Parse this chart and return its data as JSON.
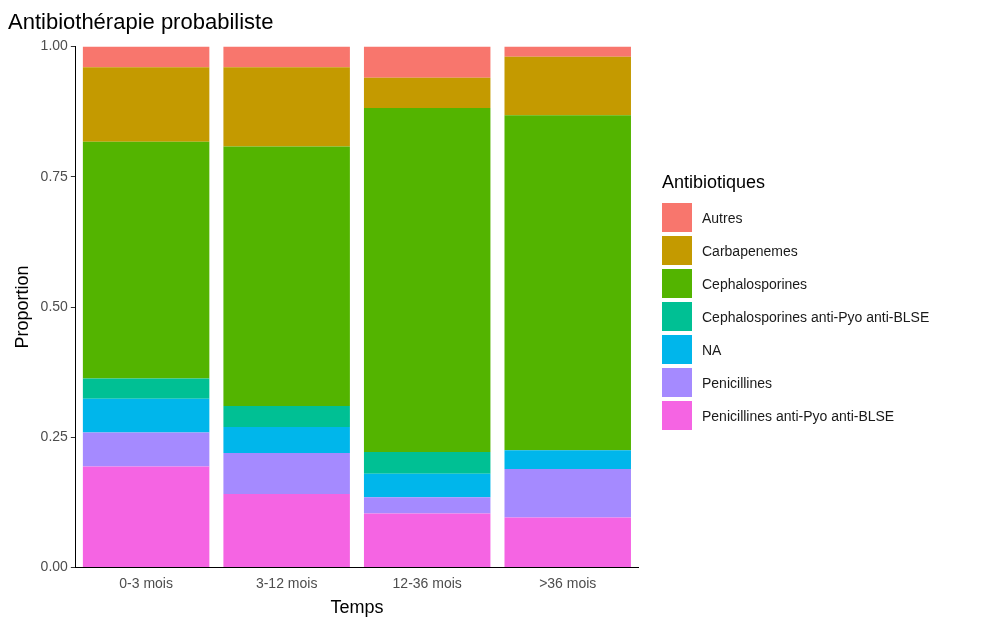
{
  "chart_data": {
    "type": "bar",
    "title": "Antibiothérapie probabiliste",
    "xlabel": "Temps",
    "ylabel": "Proportion",
    "legend_title": "Antibiotiques",
    "categories": [
      "0-3 mois",
      "3-12 mois",
      "12-36 mois",
      ">36 mois"
    ],
    "stacked": true,
    "legend": "right",
    "grid": false,
    "ylim": [
      0,
      1
    ],
    "yticks": [
      {
        "value": 0,
        "label": "0.00"
      },
      {
        "value": 0.25,
        "label": "0.25"
      },
      {
        "value": 0.5,
        "label": "0.50"
      },
      {
        "value": 0.75,
        "label": "0.75"
      },
      {
        "value": 1,
        "label": "1.00"
      }
    ],
    "series": [
      {
        "name": "Penicillines anti-Pyo anti-BLSE",
        "color": "#f564e3",
        "values": [
          0.194,
          0.141,
          0.104,
          0.096
        ]
      },
      {
        "name": "Penicillines",
        "color": "#a58aff",
        "values": [
          0.065,
          0.079,
          0.031,
          0.093
        ]
      },
      {
        "name": "NA",
        "color": "#00b6eb",
        "values": [
          0.065,
          0.05,
          0.045,
          0.036
        ]
      },
      {
        "name": "Cephalosporines anti-Pyo anti-BLSE",
        "color": "#00c094",
        "values": [
          0.039,
          0.04,
          0.042,
          0
        ]
      },
      {
        "name": "Cephalosporines",
        "color": "#53b400",
        "values": [
          0.454,
          0.498,
          0.66,
          0.643
        ]
      },
      {
        "name": "Carbapenemes",
        "color": "#c49a00",
        "values": [
          0.143,
          0.152,
          0.058,
          0.112
        ]
      },
      {
        "name": "Autres",
        "color": "#f8766d",
        "values": [
          0.04,
          0.04,
          0.06,
          0.02
        ]
      }
    ]
  }
}
